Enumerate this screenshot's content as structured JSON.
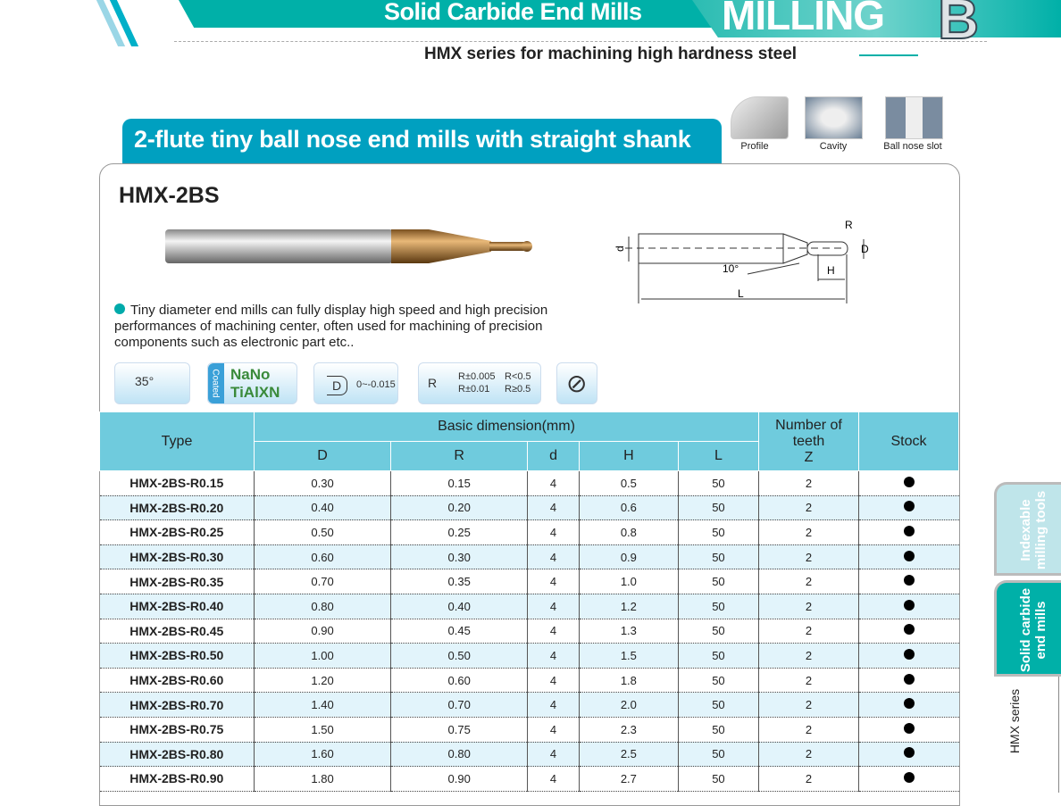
{
  "header": {
    "category": "Solid Carbide End Mills",
    "section": "MILLING",
    "letter": "B",
    "subtitle": "HMX series for machining high hardness steel"
  },
  "section_title": "2-flute tiny ball nose end mills with straight shank",
  "applications": [
    {
      "label": "Profile"
    },
    {
      "label": "Cavity"
    },
    {
      "label": "Ball nose slot"
    }
  ],
  "model": "HMX-2BS",
  "description": "Tiny diameter end mills can fully display high speed and high precision performances of machining center, often used for machining of precision components such as electronic part etc..",
  "diagram": {
    "labels": {
      "R": "R",
      "D": "D",
      "d": "d",
      "H": "H",
      "L": "L",
      "angle": "10°"
    }
  },
  "features": {
    "helix": "35°",
    "coated": "Coated",
    "coating_1": "NaNo",
    "coating_2": "TiAlXN",
    "d_sym": "D",
    "d_tol": "0~-0.015",
    "r_sym": "R",
    "r_tol_1": "R±0.005",
    "r_cond_1": "R<0.5",
    "r_tol_2": "R±0.01",
    "r_cond_2": "R≥0.5"
  },
  "table": {
    "headers": {
      "type": "Type",
      "basic": "Basic dimension(mm)",
      "D": "D",
      "R": "R",
      "d": "d",
      "H": "H",
      "L": "L",
      "teeth": "Number of teeth",
      "Z": "Z",
      "stock": "Stock"
    },
    "rows": [
      [
        "HMX-2BS-R0.15",
        "0.30",
        "0.15",
        "4",
        "0.5",
        "50",
        "2",
        true
      ],
      [
        "HMX-2BS-R0.20",
        "0.40",
        "0.20",
        "4",
        "0.6",
        "50",
        "2",
        true
      ],
      [
        "HMX-2BS-R0.25",
        "0.50",
        "0.25",
        "4",
        "0.8",
        "50",
        "2",
        true
      ],
      [
        "HMX-2BS-R0.30",
        "0.60",
        "0.30",
        "4",
        "0.9",
        "50",
        "2",
        true
      ],
      [
        "HMX-2BS-R0.35",
        "0.70",
        "0.35",
        "4",
        "1.0",
        "50",
        "2",
        true
      ],
      [
        "HMX-2BS-R0.40",
        "0.80",
        "0.40",
        "4",
        "1.2",
        "50",
        "2",
        true
      ],
      [
        "HMX-2BS-R0.45",
        "0.90",
        "0.45",
        "4",
        "1.3",
        "50",
        "2",
        true
      ],
      [
        "HMX-2BS-R0.50",
        "1.00",
        "0.50",
        "4",
        "1.5",
        "50",
        "2",
        true
      ],
      [
        "HMX-2BS-R0.60",
        "1.20",
        "0.60",
        "4",
        "1.8",
        "50",
        "2",
        true
      ],
      [
        "HMX-2BS-R0.70",
        "1.40",
        "0.70",
        "4",
        "2.0",
        "50",
        "2",
        true
      ],
      [
        "HMX-2BS-R0.75",
        "1.50",
        "0.75",
        "4",
        "2.3",
        "50",
        "2",
        true
      ],
      [
        "HMX-2BS-R0.80",
        "1.60",
        "0.80",
        "4",
        "2.5",
        "50",
        "2",
        true
      ],
      [
        "HMX-2BS-R0.90",
        "1.80",
        "0.90",
        "4",
        "2.7",
        "50",
        "2",
        true
      ]
    ]
  },
  "side_tabs": [
    {
      "label": "Indexable milling tools"
    },
    {
      "label": "Solid carbide end mills",
      "active": true
    },
    {
      "label": "HMX series"
    }
  ],
  "colors": {
    "teal": "#00b0a8",
    "header_blue": "#6fcbdd",
    "title_blue": "#00a0c0",
    "alt_row": "#e2f4fb"
  }
}
